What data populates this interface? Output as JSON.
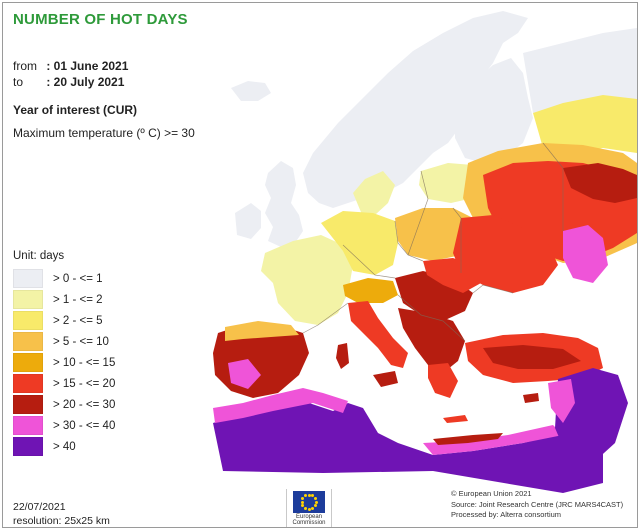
{
  "title": "NUMBER OF HOT DAYS",
  "period": {
    "from_label": "from",
    "from_value": ": 01 June 2021",
    "to_label": "to",
    "to_value": ": 20 July 2021"
  },
  "year_of_interest": "Year of interest (CUR)",
  "criterion": "Maximum temperature (º C) >= 30",
  "legend": {
    "title": "Unit: days",
    "classes": [
      {
        "label": "> 0 - <= 1",
        "color": "#eceef3"
      },
      {
        "label": "> 1 - <= 2",
        "color": "#f3f3a6"
      },
      {
        "label": "> 2 - <= 5",
        "color": "#f8ea6a"
      },
      {
        "label": "> 5 - <= 10",
        "color": "#f7c14a"
      },
      {
        "label": "> 10 - <= 15",
        "color": "#edab0c"
      },
      {
        "label": "> 15 - <= 20",
        "color": "#ee3a24"
      },
      {
        "label": "> 20 - <= 30",
        "color": "#b61d10"
      },
      {
        "label": "> 30 - <= 40",
        "color": "#ef54d8"
      },
      {
        "label": "> 40",
        "color": "#6f14b4"
      }
    ]
  },
  "colors": {
    "sea": "#ffffff",
    "border_lines": "#7a6a5a",
    "out_of_scope_land": "#ffffff"
  },
  "footer": {
    "date": "22/07/2021",
    "resolution": "resolution: 25x25 km",
    "eu_logo_text": "European Commission",
    "copyright": "© European Union 2021",
    "source": "Source: Joint Research Centre (JRC MARS4CAST)",
    "processed": "Processed by: Alterra consortium"
  }
}
